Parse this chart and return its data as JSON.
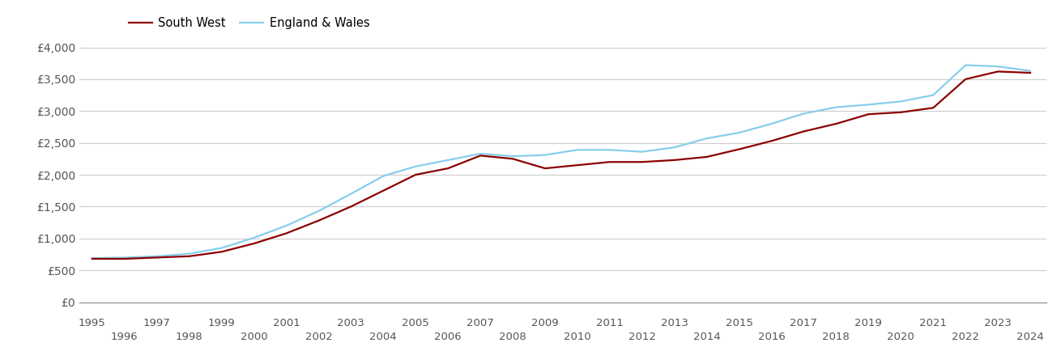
{
  "south_west_years": [
    1995,
    1996,
    1997,
    1998,
    1999,
    2000,
    2001,
    2002,
    2003,
    2004,
    2005,
    2006,
    2007,
    2008,
    2009,
    2010,
    2011,
    2012,
    2013,
    2014,
    2015,
    2016,
    2017,
    2018,
    2019,
    2020,
    2021,
    2022,
    2023,
    2024
  ],
  "south_west_values": [
    680,
    680,
    700,
    720,
    790,
    920,
    1080,
    1280,
    1500,
    1750,
    2000,
    2100,
    2300,
    2250,
    2100,
    2150,
    2200,
    2200,
    2230,
    2280,
    2400,
    2530,
    2680,
    2800,
    2950,
    2980,
    3050,
    3500,
    3620,
    3600
  ],
  "eng_wales_years": [
    1995,
    1996,
    1997,
    1998,
    1999,
    2000,
    2001,
    2002,
    2003,
    2004,
    2005,
    2006,
    2007,
    2008,
    2009,
    2010,
    2011,
    2012,
    2013,
    2014,
    2015,
    2016,
    2017,
    2018,
    2019,
    2020,
    2021,
    2022,
    2023,
    2024
  ],
  "eng_wales_values": [
    690,
    700,
    720,
    760,
    850,
    1010,
    1200,
    1430,
    1700,
    1980,
    2130,
    2230,
    2330,
    2290,
    2310,
    2390,
    2390,
    2360,
    2430,
    2570,
    2660,
    2800,
    2960,
    3060,
    3100,
    3150,
    3250,
    3720,
    3700,
    3630
  ],
  "south_west_color": "#8B0000",
  "eng_wales_color": "#87CEEB",
  "ylim": [
    0,
    4000
  ],
  "yticks": [
    0,
    500,
    1000,
    1500,
    2000,
    2500,
    3000,
    3500,
    4000
  ],
  "ytick_labels": [
    "£0",
    "£500",
    "£1,000",
    "£1,500",
    "£2,000",
    "£2,500",
    "£3,000",
    "£3,500",
    "£4,000"
  ],
  "xlim_min": 1994.6,
  "xlim_max": 2024.5,
  "legend_south_west": "South West",
  "legend_eng_wales": "England & Wales",
  "sw_linewidth": 1.6,
  "ew_linewidth": 1.6,
  "background_color": "#ffffff",
  "grid_color": "#cccccc",
  "label_color": "#555555",
  "label_fontsize": 10,
  "tick_fontsize": 9.5
}
